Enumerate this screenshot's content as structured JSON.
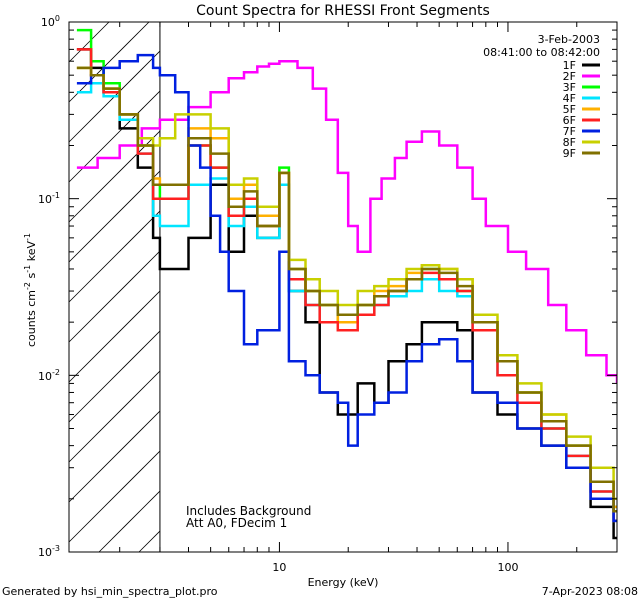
{
  "chart_data": {
    "type": "line",
    "title": "Count Spectra for RHESSI Front Segments",
    "xlabel": "Energy (keV)",
    "ylabel_parts": {
      "base": "counts cm",
      "exp1": "-2",
      "mid": " s",
      "exp2": "-1",
      "mid2": " keV",
      "exp3": "-1"
    },
    "x_scale": "log",
    "y_scale": "log",
    "xlim": [
      1.2,
      300
    ],
    "ylim": [
      0.001,
      1
    ],
    "x_ticks": [
      {
        "value": 10,
        "label": "10"
      },
      {
        "value": 100,
        "label": "100"
      }
    ],
    "y_ticks": [
      {
        "value": 1,
        "base": "10",
        "exp": "0"
      },
      {
        "value": 0.1,
        "base": "10",
        "exp": "-1"
      },
      {
        "value": 0.01,
        "base": "10",
        "exp": "-2"
      },
      {
        "value": 0.001,
        "base": "10",
        "exp": "-3"
      }
    ],
    "date": "3-Feb-2003",
    "time_range": "08:41:00 to 08:42:00",
    "annotations": [
      "Includes Background",
      "Att A0, FDecim 1"
    ],
    "hatched_below_kev": 3,
    "series": [
      {
        "name": "1F",
        "color": "#000000",
        "points": [
          [
            1.3,
            0.7
          ],
          [
            1.5,
            0.55
          ],
          [
            1.7,
            0.4
          ],
          [
            2,
            0.25
          ],
          [
            2.4,
            0.15
          ],
          [
            2.8,
            0.06
          ],
          [
            3,
            0.04
          ],
          [
            4,
            0.06
          ],
          [
            5,
            0.12
          ],
          [
            6,
            0.05
          ],
          [
            7,
            0.08
          ],
          [
            8,
            0.06
          ],
          [
            10,
            0.12
          ],
          [
            11,
            0.03
          ],
          [
            13,
            0.02
          ],
          [
            15,
            0.008
          ],
          [
            18,
            0.006
          ],
          [
            22,
            0.009
          ],
          [
            26,
            0.007
          ],
          [
            30,
            0.012
          ],
          [
            36,
            0.015
          ],
          [
            42,
            0.02
          ],
          [
            50,
            0.02
          ],
          [
            60,
            0.018
          ],
          [
            70,
            0.008
          ],
          [
            90,
            0.006
          ],
          [
            110,
            0.005
          ],
          [
            140,
            0.004
          ],
          [
            180,
            0.003
          ],
          [
            230,
            0.0018
          ],
          [
            290,
            0.0012
          ]
        ]
      },
      {
        "name": "2F",
        "color": "#ff00ff",
        "points": [
          [
            1.3,
            0.15
          ],
          [
            1.6,
            0.17
          ],
          [
            2,
            0.2
          ],
          [
            2.5,
            0.25
          ],
          [
            3,
            0.28
          ],
          [
            4,
            0.33
          ],
          [
            5,
            0.4
          ],
          [
            6,
            0.48
          ],
          [
            7,
            0.52
          ],
          [
            8,
            0.56
          ],
          [
            9,
            0.58
          ],
          [
            10,
            0.6
          ],
          [
            12,
            0.55
          ],
          [
            14,
            0.42
          ],
          [
            16,
            0.28
          ],
          [
            18,
            0.14
          ],
          [
            20,
            0.07
          ],
          [
            22,
            0.05
          ],
          [
            25,
            0.1
          ],
          [
            28,
            0.13
          ],
          [
            32,
            0.17
          ],
          [
            36,
            0.21
          ],
          [
            42,
            0.24
          ],
          [
            50,
            0.2
          ],
          [
            60,
            0.15
          ],
          [
            70,
            0.1
          ],
          [
            80,
            0.07
          ],
          [
            100,
            0.05
          ],
          [
            120,
            0.04
          ],
          [
            150,
            0.025
          ],
          [
            180,
            0.018
          ],
          [
            220,
            0.013
          ],
          [
            270,
            0.01
          ],
          [
            300,
            0.009
          ]
        ]
      },
      {
        "name": "3F",
        "color": "#00ff00",
        "points": [
          [
            1.3,
            0.9
          ],
          [
            1.5,
            0.6
          ],
          [
            1.7,
            0.45
          ],
          [
            2,
            0.3
          ],
          [
            2.4,
            0.2
          ],
          [
            2.8,
            0.12
          ],
          [
            3,
            0.1
          ],
          [
            4,
            0.2
          ],
          [
            5,
            0.15
          ],
          [
            6,
            0.08
          ],
          [
            7,
            0.1
          ],
          [
            8,
            0.07
          ],
          [
            10,
            0.15
          ],
          [
            11,
            0.04
          ],
          [
            13,
            0.03
          ],
          [
            15,
            0.025
          ],
          [
            18,
            0.02
          ],
          [
            22,
            0.025
          ],
          [
            26,
            0.028
          ],
          [
            30,
            0.03
          ],
          [
            36,
            0.035
          ],
          [
            42,
            0.04
          ],
          [
            50,
            0.035
          ],
          [
            60,
            0.03
          ],
          [
            70,
            0.02
          ],
          [
            90,
            0.012
          ],
          [
            110,
            0.008
          ],
          [
            140,
            0.005
          ],
          [
            180,
            0.004
          ],
          [
            230,
            0.0025
          ],
          [
            290,
            0.0018
          ]
        ]
      },
      {
        "name": "4F",
        "color": "#00e5ff",
        "points": [
          [
            1.3,
            0.4
          ],
          [
            1.5,
            0.45
          ],
          [
            1.7,
            0.38
          ],
          [
            2,
            0.28
          ],
          [
            2.4,
            0.18
          ],
          [
            2.8,
            0.08
          ],
          [
            3,
            0.07
          ],
          [
            4,
            0.12
          ],
          [
            5,
            0.13
          ],
          [
            6,
            0.07
          ],
          [
            7,
            0.09
          ],
          [
            8,
            0.06
          ],
          [
            10,
            0.12
          ],
          [
            11,
            0.03
          ],
          [
            13,
            0.025
          ],
          [
            15,
            0.02
          ],
          [
            18,
            0.02
          ],
          [
            22,
            0.022
          ],
          [
            26,
            0.025
          ],
          [
            30,
            0.028
          ],
          [
            36,
            0.03
          ],
          [
            42,
            0.035
          ],
          [
            50,
            0.03
          ],
          [
            60,
            0.028
          ],
          [
            70,
            0.018
          ],
          [
            90,
            0.01
          ],
          [
            110,
            0.007
          ],
          [
            140,
            0.005
          ],
          [
            180,
            0.0035
          ],
          [
            230,
            0.0022
          ],
          [
            290,
            0.0015
          ]
        ]
      },
      {
        "name": "5F",
        "color": "#ffb000",
        "points": [
          [
            1.3,
            0.55
          ],
          [
            1.5,
            0.5
          ],
          [
            1.7,
            0.42
          ],
          [
            2,
            0.3
          ],
          [
            2.4,
            0.2
          ],
          [
            2.8,
            0.13
          ],
          [
            3,
            0.12
          ],
          [
            4,
            0.25
          ],
          [
            5,
            0.22
          ],
          [
            6,
            0.1
          ],
          [
            7,
            0.12
          ],
          [
            8,
            0.08
          ],
          [
            10,
            0.14
          ],
          [
            11,
            0.04
          ],
          [
            13,
            0.03
          ],
          [
            15,
            0.025
          ],
          [
            18,
            0.02
          ],
          [
            22,
            0.025
          ],
          [
            26,
            0.03
          ],
          [
            30,
            0.032
          ],
          [
            36,
            0.038
          ],
          [
            42,
            0.042
          ],
          [
            50,
            0.04
          ],
          [
            60,
            0.035
          ],
          [
            70,
            0.02
          ],
          [
            90,
            0.012
          ],
          [
            110,
            0.008
          ],
          [
            140,
            0.006
          ],
          [
            180,
            0.004
          ],
          [
            230,
            0.0025
          ],
          [
            290,
            0.0018
          ]
        ]
      },
      {
        "name": "6F",
        "color": "#ff2020",
        "points": [
          [
            1.3,
            0.7
          ],
          [
            1.5,
            0.5
          ],
          [
            1.7,
            0.4
          ],
          [
            2,
            0.3
          ],
          [
            2.4,
            0.18
          ],
          [
            2.8,
            0.1
          ],
          [
            3,
            0.1
          ],
          [
            4,
            0.2
          ],
          [
            5,
            0.15
          ],
          [
            6,
            0.08
          ],
          [
            7,
            0.1
          ],
          [
            8,
            0.07
          ],
          [
            10,
            0.14
          ],
          [
            11,
            0.035
          ],
          [
            13,
            0.025
          ],
          [
            15,
            0.02
          ],
          [
            18,
            0.018
          ],
          [
            22,
            0.022
          ],
          [
            26,
            0.025
          ],
          [
            30,
            0.03
          ],
          [
            36,
            0.035
          ],
          [
            42,
            0.038
          ],
          [
            50,
            0.035
          ],
          [
            60,
            0.03
          ],
          [
            70,
            0.018
          ],
          [
            90,
            0.01
          ],
          [
            110,
            0.007
          ],
          [
            140,
            0.005
          ],
          [
            180,
            0.0035
          ],
          [
            230,
            0.0022
          ],
          [
            290,
            0.0015
          ]
        ]
      },
      {
        "name": "7F",
        "color": "#0020e0",
        "points": [
          [
            1.3,
            0.45
          ],
          [
            1.5,
            0.5
          ],
          [
            1.7,
            0.55
          ],
          [
            2,
            0.6
          ],
          [
            2.4,
            0.65
          ],
          [
            2.8,
            0.55
          ],
          [
            3,
            0.5
          ],
          [
            3.5,
            0.4
          ],
          [
            4,
            0.2
          ],
          [
            4.5,
            0.15
          ],
          [
            5,
            0.08
          ],
          [
            5.5,
            0.05
          ],
          [
            6,
            0.03
          ],
          [
            7,
            0.015
          ],
          [
            8,
            0.018
          ],
          [
            10,
            0.05
          ],
          [
            11,
            0.012
          ],
          [
            13,
            0.01
          ],
          [
            15,
            0.008
          ],
          [
            18,
            0.007
          ],
          [
            20,
            0.004
          ],
          [
            22,
            0.006
          ],
          [
            26,
            0.007
          ],
          [
            30,
            0.008
          ],
          [
            36,
            0.012
          ],
          [
            42,
            0.015
          ],
          [
            50,
            0.016
          ],
          [
            60,
            0.012
          ],
          [
            70,
            0.008
          ],
          [
            90,
            0.007
          ],
          [
            110,
            0.005
          ],
          [
            140,
            0.004
          ],
          [
            180,
            0.003
          ],
          [
            230,
            0.002
          ],
          [
            290,
            0.0015
          ]
        ]
      },
      {
        "name": "8F",
        "color": "#c8d000",
        "points": [
          [
            1.3,
            0.55
          ],
          [
            1.5,
            0.5
          ],
          [
            1.7,
            0.42
          ],
          [
            2,
            0.3
          ],
          [
            2.4,
            0.22
          ],
          [
            2.8,
            0.2
          ],
          [
            3,
            0.22
          ],
          [
            3.5,
            0.3
          ],
          [
            4,
            0.3
          ],
          [
            5,
            0.25
          ],
          [
            6,
            0.12
          ],
          [
            7,
            0.13
          ],
          [
            8,
            0.09
          ],
          [
            10,
            0.14
          ],
          [
            11,
            0.045
          ],
          [
            13,
            0.035
          ],
          [
            15,
            0.03
          ],
          [
            18,
            0.025
          ],
          [
            22,
            0.03
          ],
          [
            26,
            0.032
          ],
          [
            30,
            0.035
          ],
          [
            36,
            0.04
          ],
          [
            42,
            0.042
          ],
          [
            50,
            0.04
          ],
          [
            60,
            0.035
          ],
          [
            70,
            0.022
          ],
          [
            90,
            0.013
          ],
          [
            110,
            0.009
          ],
          [
            140,
            0.006
          ],
          [
            180,
            0.0045
          ],
          [
            230,
            0.003
          ],
          [
            290,
            0.002
          ]
        ]
      },
      {
        "name": "9F",
        "color": "#807000",
        "points": [
          [
            1.3,
            0.55
          ],
          [
            1.5,
            0.5
          ],
          [
            1.7,
            0.42
          ],
          [
            2,
            0.3
          ],
          [
            2.4,
            0.2
          ],
          [
            2.8,
            0.12
          ],
          [
            3,
            0.12
          ],
          [
            4,
            0.22
          ],
          [
            5,
            0.18
          ],
          [
            6,
            0.09
          ],
          [
            7,
            0.11
          ],
          [
            8,
            0.07
          ],
          [
            10,
            0.14
          ],
          [
            11,
            0.04
          ],
          [
            13,
            0.03
          ],
          [
            15,
            0.025
          ],
          [
            18,
            0.022
          ],
          [
            22,
            0.025
          ],
          [
            26,
            0.028
          ],
          [
            30,
            0.03
          ],
          [
            36,
            0.035
          ],
          [
            42,
            0.04
          ],
          [
            50,
            0.038
          ],
          [
            60,
            0.032
          ],
          [
            70,
            0.02
          ],
          [
            90,
            0.012
          ],
          [
            110,
            0.008
          ],
          [
            140,
            0.0055
          ],
          [
            180,
            0.004
          ],
          [
            230,
            0.0025
          ],
          [
            290,
            0.0017
          ]
        ]
      }
    ]
  },
  "footer": {
    "left": "Generated by hsi_min_spectra_plot.pro",
    "right": "7-Apr-2023 08:08"
  }
}
